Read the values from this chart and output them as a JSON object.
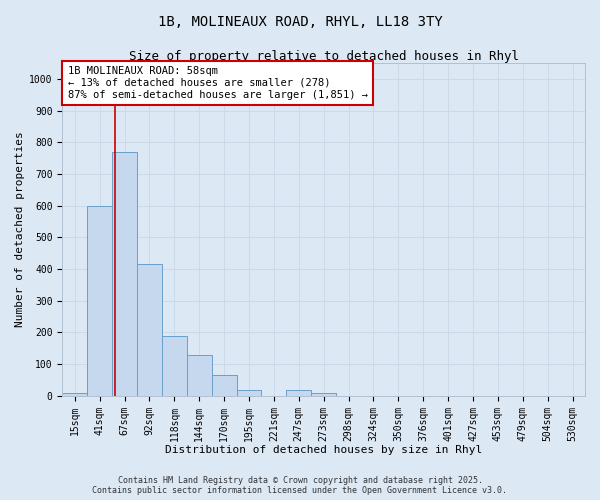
{
  "title_line1": "1B, MOLINEAUX ROAD, RHYL, LL18 3TY",
  "title_line2": "Size of property relative to detached houses in Rhyl",
  "xlabel": "Distribution of detached houses by size in Rhyl",
  "ylabel": "Number of detached properties",
  "bar_color": "#c5d8ee",
  "bar_edge_color": "#6aa0cc",
  "categories": [
    "15sqm",
    "41sqm",
    "67sqm",
    "92sqm",
    "118sqm",
    "144sqm",
    "170sqm",
    "195sqm",
    "221sqm",
    "247sqm",
    "273sqm",
    "298sqm",
    "324sqm",
    "350sqm",
    "376sqm",
    "401sqm",
    "427sqm",
    "453sqm",
    "479sqm",
    "504sqm",
    "530sqm"
  ],
  "values": [
    10,
    600,
    770,
    415,
    190,
    130,
    65,
    20,
    0,
    20,
    10,
    0,
    0,
    0,
    0,
    0,
    0,
    0,
    0,
    0,
    0
  ],
  "ylim": [
    0,
    1050
  ],
  "yticks": [
    0,
    100,
    200,
    300,
    400,
    500,
    600,
    700,
    800,
    900,
    1000
  ],
  "property_line_x": 1.62,
  "property_line_color": "#cc0000",
  "annotation_text": "1B MOLINEAUX ROAD: 58sqm\n← 13% of detached houses are smaller (278)\n87% of semi-detached houses are larger (1,851) →",
  "annotation_box_color": "#cc0000",
  "annotation_bg_color": "#ffffff",
  "grid_color": "#c8d8e8",
  "background_color": "#dde8f5",
  "footer_text": "Contains HM Land Registry data © Crown copyright and database right 2025.\nContains public sector information licensed under the Open Government Licence v3.0.",
  "title_fontsize": 10,
  "subtitle_fontsize": 9,
  "xlabel_fontsize": 8,
  "ylabel_fontsize": 8,
  "tick_fontsize": 7,
  "annotation_fontsize": 7.5,
  "footer_fontsize": 6
}
